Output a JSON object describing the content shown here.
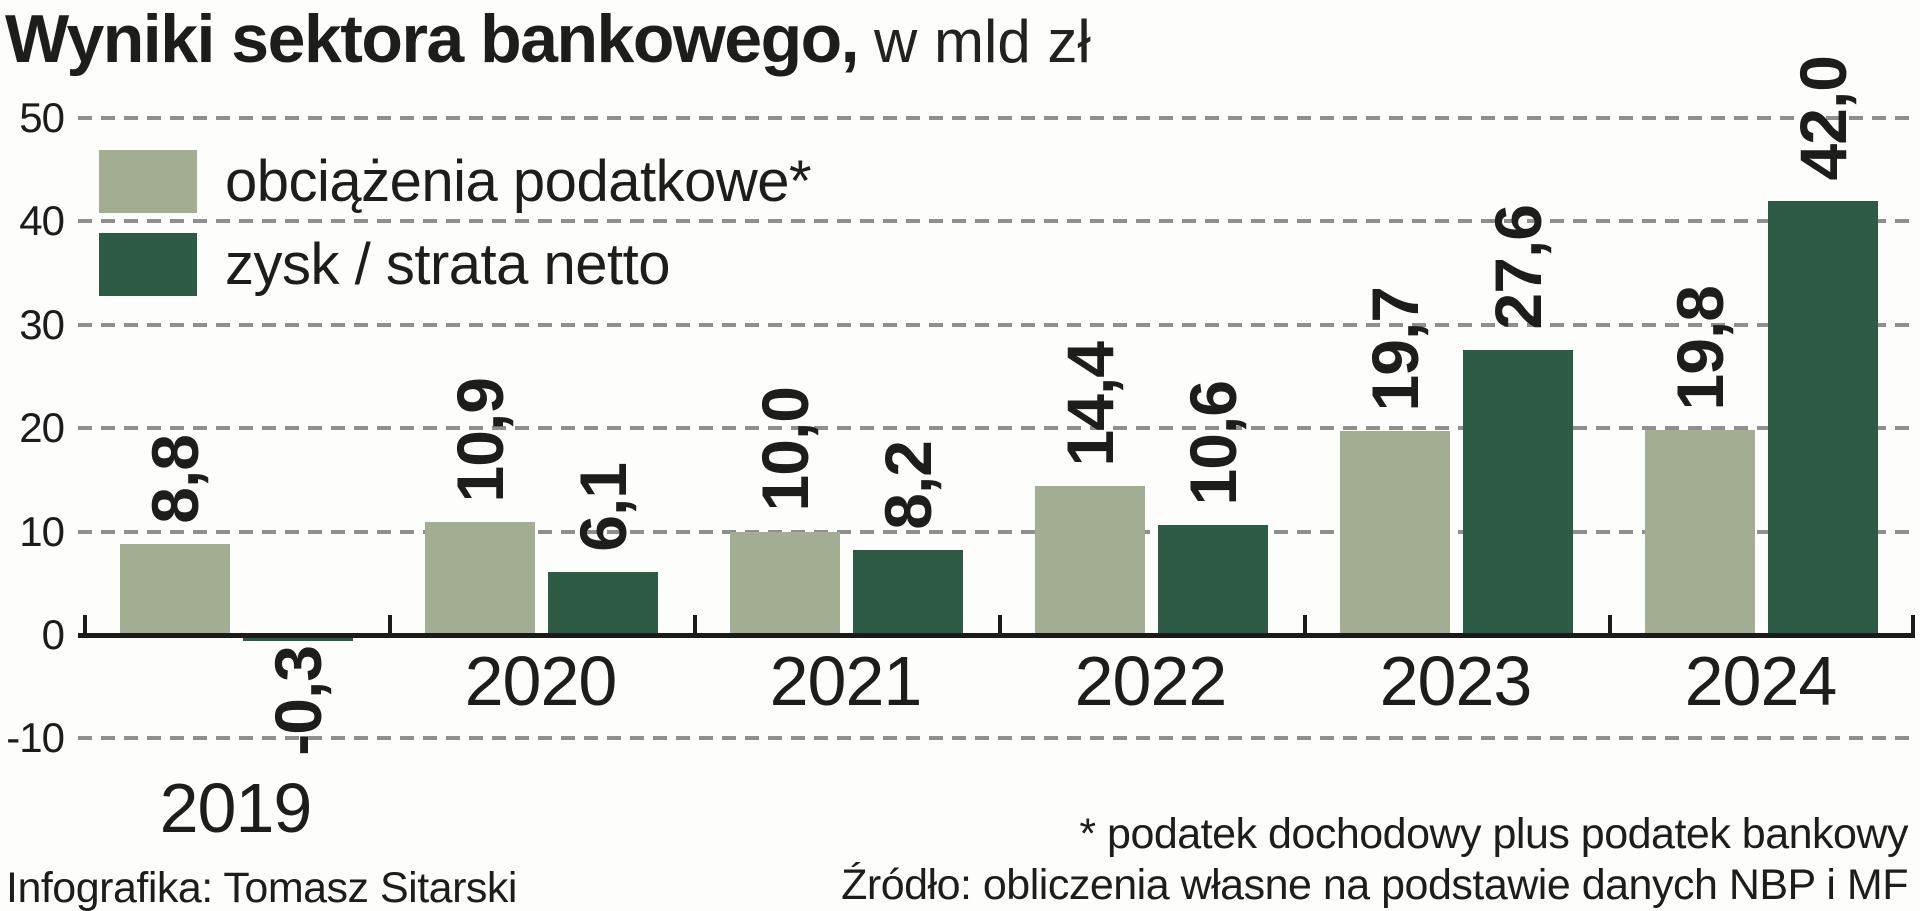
{
  "title": {
    "main": "Wyniki sektora bankowego,",
    "unit": "w mld zł"
  },
  "legend": [
    {
      "key": "tax-burden",
      "label": "obciążenia podatkowe*",
      "color": "#a3ad91"
    },
    {
      "key": "net-profit",
      "label": "zysk / strata netto",
      "color": "#2e5b45"
    }
  ],
  "chart_data": {
    "type": "bar",
    "title": "Wyniki sektora bankowego, w mld zł",
    "categories": [
      "2019",
      "2020",
      "2021",
      "2022",
      "2023",
      "2024"
    ],
    "series": [
      {
        "key": "tax-burden",
        "name": "obciążenia podatkowe*",
        "color": "#a3ad91",
        "values": [
          8.8,
          10.9,
          10.0,
          14.4,
          19.7,
          19.8
        ],
        "labels": [
          "8,8",
          "10,9",
          "10,0",
          "14,4",
          "19,7",
          "19,8"
        ]
      },
      {
        "key": "net-profit",
        "name": "zysk / strata netto",
        "color": "#2e5b45",
        "values": [
          -0.3,
          6.1,
          8.2,
          10.6,
          27.6,
          42.0
        ],
        "labels": [
          "-0,3",
          "6,1",
          "8,2",
          "10,6",
          "27,6",
          "42,0"
        ]
      }
    ],
    "ylabel": "w mld zł",
    "ylim": [
      -10,
      50
    ],
    "yticks": [
      50,
      40,
      30,
      20,
      10,
      0,
      -10
    ],
    "grid": "horizontal-dashed",
    "legend_position": "top-left"
  },
  "footer": {
    "credit": "Infografika: Tomasz Sitarski",
    "note": "* podatek dochodowy plus podatek bankowy",
    "source": "Źródło: obliczenia własne na podstawie danych NBP i MF"
  },
  "colors": {
    "bar_light": "#a3ad91",
    "bar_dark": "#2e5b45",
    "grid": "#8f8f8f",
    "axis": "#1b1b19",
    "text": "#1d1d1b",
    "background": "#fdfdfc"
  }
}
